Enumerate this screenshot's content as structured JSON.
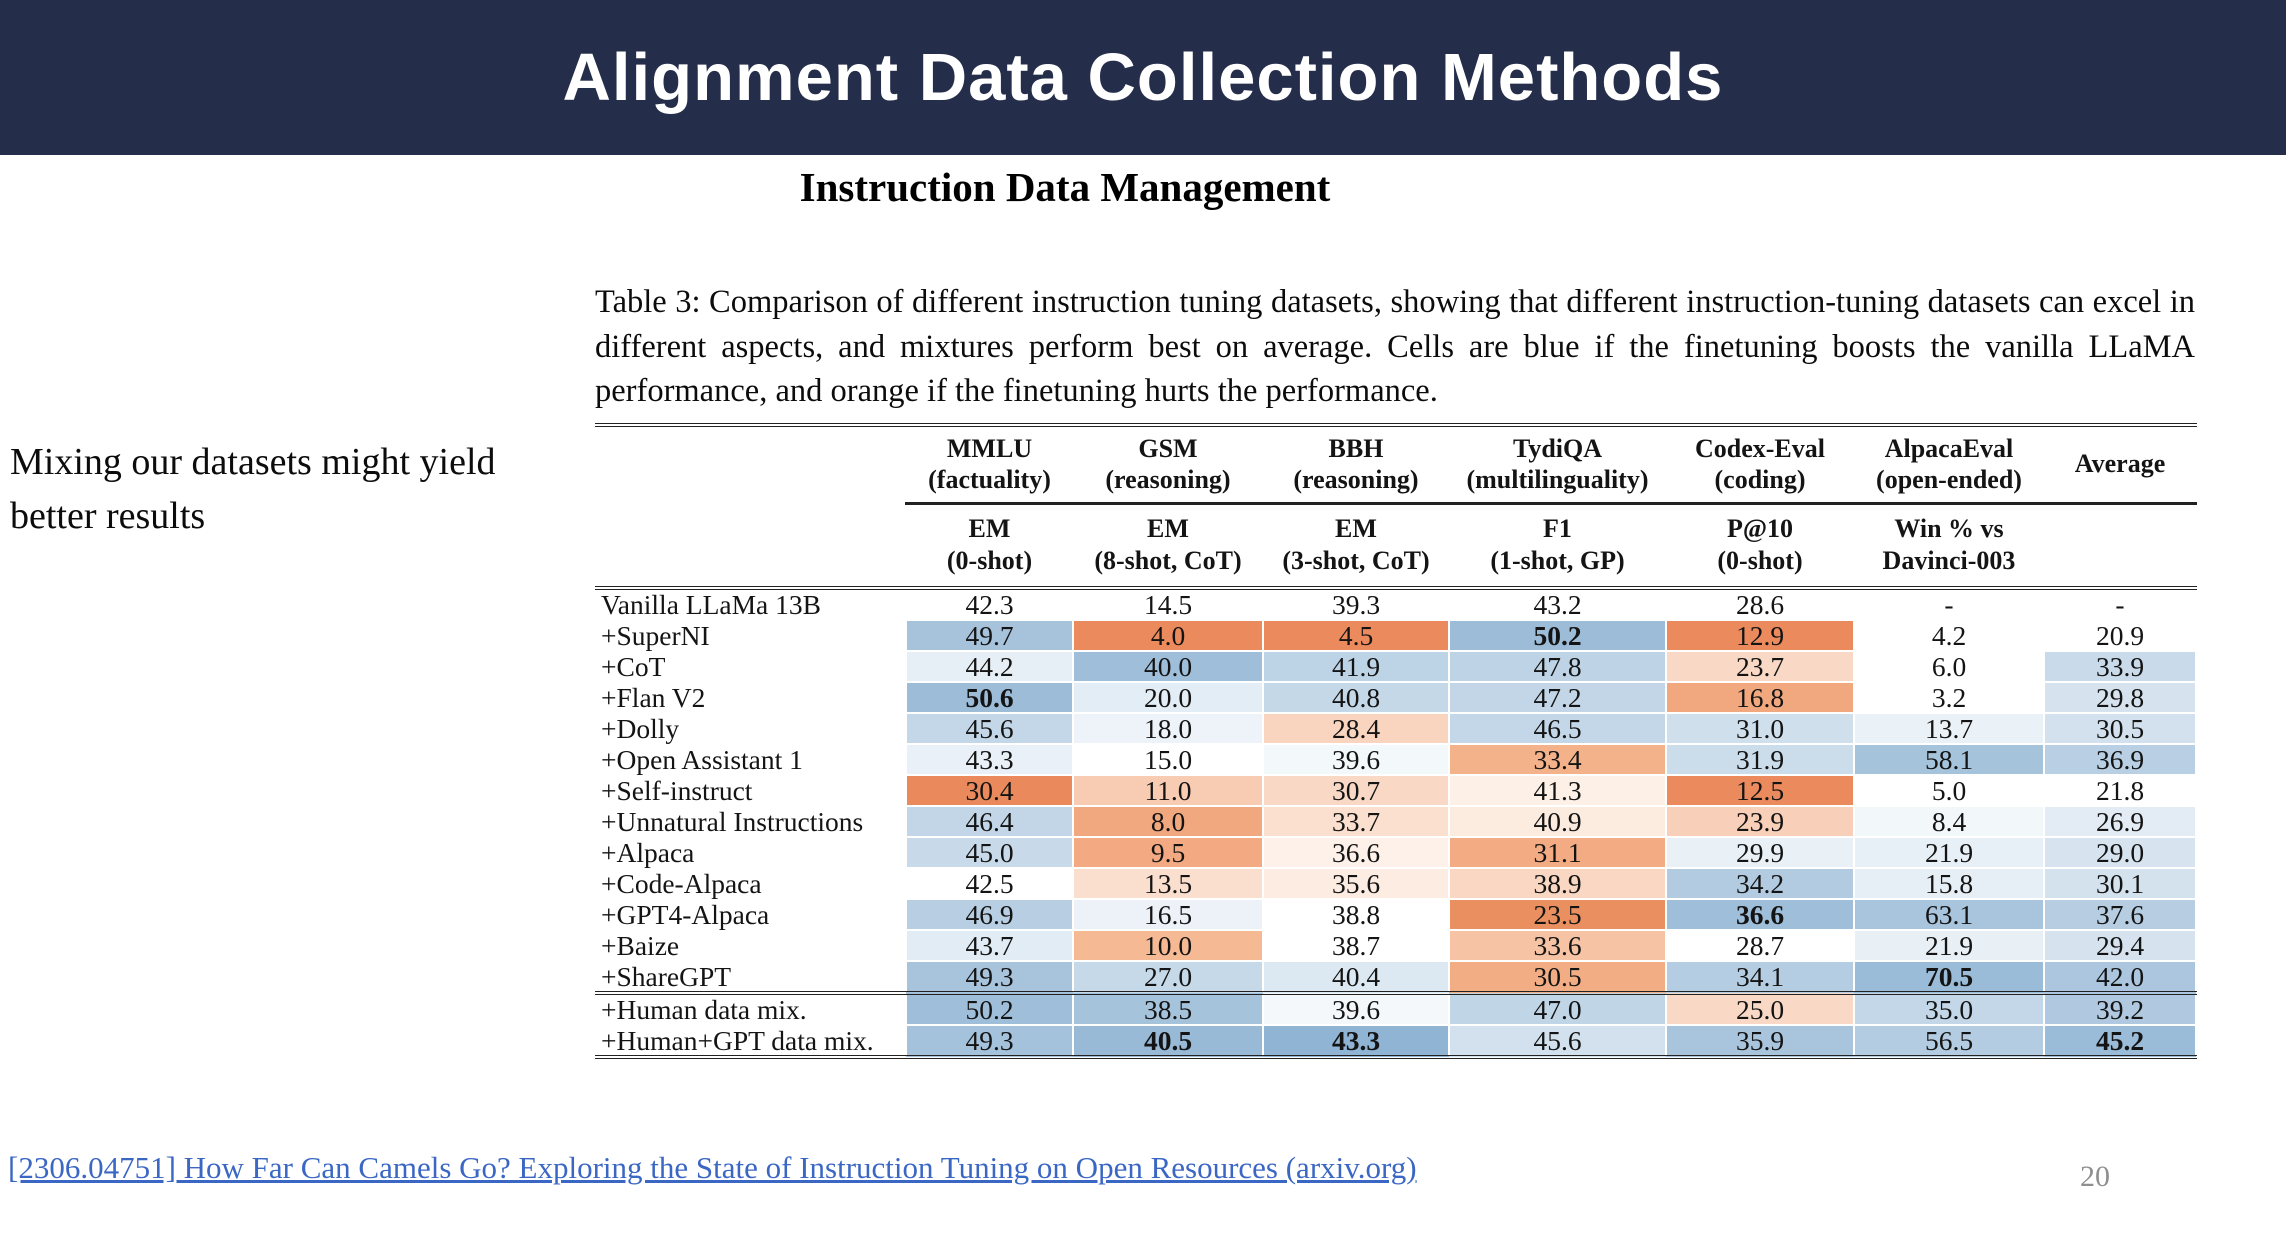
{
  "slide": {
    "title": "Alignment Data Collection Methods",
    "subtitle": "Instruction Data Management",
    "side_note": "Mixing our datasets might yield better results",
    "colors": {
      "title_bar": "#242d4a",
      "link": "#3b67c4",
      "boost_blue": "#9cbcd8",
      "hurt_orange": "#eb8a5c"
    }
  },
  "figure": {
    "caption": "Table 3: Comparison of different instruction tuning datasets, showing that different instruction-tuning datasets can excel in different aspects, and mixtures perform best on average. Cells are blue if the finetuning boosts the vanilla LLaMA performance, and orange if the finetuning hurts the performance.",
    "table": {
      "columns": [
        {
          "name": "MMLU",
          "qualifier": "(factuality)",
          "metric": "EM",
          "setting": "(0-shot)"
        },
        {
          "name": "GSM",
          "qualifier": "(reasoning)",
          "metric": "EM",
          "setting": "(8-shot, CoT)"
        },
        {
          "name": "BBH",
          "qualifier": "(reasoning)",
          "metric": "EM",
          "setting": "(3-shot, CoT)"
        },
        {
          "name": "TydiQA",
          "qualifier": "(multilinguality)",
          "metric": "F1",
          "setting": "(1-shot, GP)"
        },
        {
          "name": "Codex-Eval",
          "qualifier": "(coding)",
          "metric": "P@10",
          "setting": "(0-shot)"
        },
        {
          "name": "AlpacaEval",
          "qualifier": "(open-ended)",
          "metric": "Win % vs",
          "setting": "Davinci-003"
        }
      ],
      "average_column": "Average",
      "rows": [
        {
          "label": "Vanilla LLaMa 13B",
          "values": [
            "42.3",
            "14.5",
            "39.3",
            "43.2",
            "28.6",
            "-",
            "-"
          ],
          "colors": [
            "",
            "",
            "",
            "",
            "",
            "",
            ""
          ],
          "bold": []
        },
        {
          "label": "+SuperNI",
          "values": [
            "49.7",
            "4.0",
            "4.5",
            "50.2",
            "12.9",
            "4.2",
            "20.9"
          ],
          "colors": [
            "#a7c3dc",
            "#eb8a5c",
            "#eb8a5c",
            "#9cbcd8",
            "#eb8a5c",
            "",
            ""
          ],
          "bold": [
            3
          ]
        },
        {
          "label": "+CoT",
          "values": [
            "44.2",
            "40.0",
            "41.9",
            "47.8",
            "23.7",
            "6.0",
            "33.9"
          ],
          "colors": [
            "#e7eff6",
            "#9fbeda",
            "#bdd3e6",
            "#bed4e6",
            "#f9d8c5",
            "",
            "#c9dbea"
          ],
          "bold": []
        },
        {
          "label": "+Flan V2",
          "values": [
            "50.6",
            "20.0",
            "40.8",
            "47.2",
            "16.8",
            "3.2",
            "29.8"
          ],
          "colors": [
            "#9cbcd8",
            "#e3edf5",
            "#c5d8e8",
            "#c2d6e7",
            "#f2a87f",
            "",
            "#d6e3ef"
          ],
          "bold": [
            0
          ]
        },
        {
          "label": "+Dolly",
          "values": [
            "45.6",
            "18.0",
            "28.4",
            "46.5",
            "31.0",
            "13.7",
            "30.5"
          ],
          "colors": [
            "#c4d7e8",
            "#edf3f8",
            "#f9d4bf",
            "#c3d7e8",
            "#cfdfec",
            "#eaf1f7",
            "#d2e1ed"
          ],
          "bold": []
        },
        {
          "label": "+Open Assistant 1",
          "values": [
            "43.3",
            "15.0",
            "39.6",
            "33.4",
            "31.9",
            "58.1",
            "36.9"
          ],
          "colors": [
            "#e9f0f7",
            "",
            "#f3f8fb",
            "#f4b28a",
            "#cbdceb",
            "#a6c3dc",
            "#b9d0e4"
          ],
          "bold": []
        },
        {
          "label": "+Self-instruct",
          "values": [
            "30.4",
            "11.0",
            "30.7",
            "41.3",
            "12.5",
            "5.0",
            "21.8"
          ],
          "colors": [
            "#ea8a5c",
            "#f8ccb2",
            "#f9d9c6",
            "#fdf0e7",
            "#eb8a5c",
            "",
            ""
          ],
          "bold": []
        },
        {
          "label": "+Unnatural Instructions",
          "values": [
            "46.4",
            "8.0",
            "33.7",
            "40.9",
            "23.9",
            "8.4",
            "26.9"
          ],
          "colors": [
            "#c2d6e7",
            "#f2a87f",
            "#fbe0cf",
            "#fcebdf",
            "#f8cfb8",
            "#f2f7fa",
            "#e3ecf4"
          ],
          "bold": []
        },
        {
          "label": "+Alpaca",
          "values": [
            "45.0",
            "9.5",
            "36.6",
            "31.1",
            "29.9",
            "21.9",
            "29.0"
          ],
          "colors": [
            "#c8daea",
            "#f3aa82",
            "#fdf1ea",
            "#f3ab83",
            "#e9f1f7",
            "#e8f0f7",
            "#d7e4ef"
          ],
          "bold": []
        },
        {
          "label": "+Code-Alpaca",
          "values": [
            "42.5",
            "13.5",
            "35.6",
            "38.9",
            "34.2",
            "15.8",
            "30.1"
          ],
          "colors": [
            "",
            "#fbdfce",
            "#fcece2",
            "#f9d7c2",
            "#b2cbe1",
            "#e7eff6",
            "#d4e2ee"
          ],
          "bold": []
        },
        {
          "label": "+GPT4-Alpaca",
          "values": [
            "46.9",
            "16.5",
            "38.8",
            "23.5",
            "36.6",
            "63.1",
            "37.6"
          ],
          "colors": [
            "#b7cee3",
            "#ecf2f8",
            "",
            "#ea8f60",
            "#9fbeda",
            "#a9c5dd",
            "#b6cde2"
          ],
          "bold": [
            4
          ]
        },
        {
          "label": "+Baize",
          "values": [
            "43.7",
            "10.0",
            "38.7",
            "33.6",
            "28.7",
            "21.9",
            "29.4"
          ],
          "colors": [
            "#e2ecf4",
            "#f5b994",
            "",
            "#f6c3a5",
            "",
            "#e8f0f6",
            "#d6e3ef"
          ],
          "bold": []
        },
        {
          "label": "+ShareGPT",
          "values": [
            "49.3",
            "27.0",
            "40.4",
            "30.5",
            "34.1",
            "70.5",
            "42.0"
          ],
          "colors": [
            "#a8c4dd",
            "#c6d9e9",
            "#dde9f2",
            "#f3ad85",
            "#b5cde2",
            "#9bbcd8",
            "#abc6de"
          ],
          "bold": [
            5
          ]
        },
        {
          "label": "+Human data mix.",
          "values": [
            "50.2",
            "38.5",
            "39.6",
            "47.0",
            "25.0",
            "35.0",
            "39.2"
          ],
          "colors": [
            "#9fbeda",
            "#a6c3dc",
            "#f4f8fb",
            "#c0d5e6",
            "#f9d8c6",
            "#c3d7e8",
            "#b0c9e0"
          ],
          "bold": [],
          "rule_above": true
        },
        {
          "label": "+Human+GPT data mix.",
          "values": [
            "49.3",
            "40.5",
            "43.3",
            "45.6",
            "35.9",
            "56.5",
            "45.2"
          ],
          "colors": [
            "#a5c2dc",
            "#98bad7",
            "#90b4d3",
            "#d3e1ee",
            "#a9c5dd",
            "#b3cce1",
            "#9bbcd8"
          ],
          "bold": [
            1,
            2,
            6
          ]
        }
      ]
    }
  },
  "footer": {
    "link_text": "[2306.04751] How Far Can Camels Go? Exploring the State of Instruction Tuning on Open Resources (arxiv.org)",
    "page_number": "20"
  }
}
